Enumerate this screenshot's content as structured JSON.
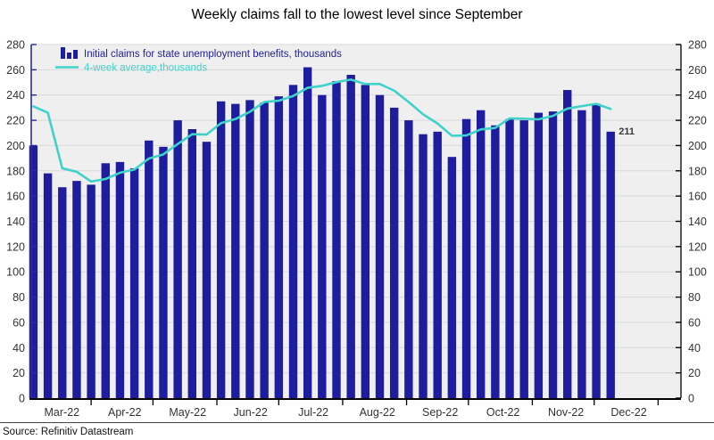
{
  "title": "Weekly claims fall to the lowest level since September",
  "legend": {
    "bars_label": "Initial claims for state unemployment benefits,  thousands",
    "line_label": "4-week average,thousands"
  },
  "annotation": {
    "text": "211"
  },
  "source": "Source: Refinitiv Datastream",
  "colors": {
    "bar": "#1d1d9e",
    "line": "#3ed2ca",
    "plot_bg": "#efefef",
    "grid": "#d9d9d9",
    "axis_black": "#000000",
    "left_spine": "#2b2b96",
    "tick_label": "#333333",
    "annotation": "#3a3a3a"
  },
  "chart_data": {
    "type": "bar",
    "title": "Weekly claims fall to the lowest level since September",
    "xlabel": "",
    "ylabel": "thousands",
    "ylim": [
      0,
      280
    ],
    "y_tick_step": 20,
    "grid": true,
    "legend_position": "top-left",
    "x_axis": {
      "month_labels": [
        "Mar-22",
        "Apr-22",
        "May-22",
        "Jun-22",
        "Jul-22",
        "Aug-22",
        "Sep-22",
        "Oct-22",
        "Nov-22",
        "Dec-22"
      ]
    },
    "series": [
      {
        "name": "Initial claims for state unemployment benefits, thousands",
        "type": "bar",
        "values": [
          200,
          178,
          167,
          172,
          169,
          186,
          187,
          182,
          204,
          199,
          220,
          213,
          203,
          235,
          233,
          236,
          234,
          239,
          248,
          262,
          240,
          251,
          256,
          248,
          240,
          230,
          220,
          209,
          211,
          191,
          221,
          228,
          216,
          221,
          220,
          226,
          227,
          244,
          228,
          233,
          211
        ]
      },
      {
        "name": "4-week average, thousands",
        "type": "line",
        "values": [
          231,
          226,
          182,
          179.25,
          171.5,
          173.5,
          178.5,
          181,
          189.75,
          193,
          201.25,
          209,
          208.75,
          217.75,
          221,
          226.75,
          234.5,
          235.5,
          239.25,
          245.75,
          247.25,
          250.25,
          252.25,
          248.75,
          248.75,
          243.5,
          234.5,
          224.75,
          217.5,
          207.75,
          208,
          212.75,
          214,
          221.5,
          221.25,
          220.75,
          223.5,
          229.25,
          231.25,
          233,
          229
        ]
      }
    ],
    "data_labels": [
      {
        "series": 0,
        "point": "last",
        "text": "211"
      }
    ]
  }
}
